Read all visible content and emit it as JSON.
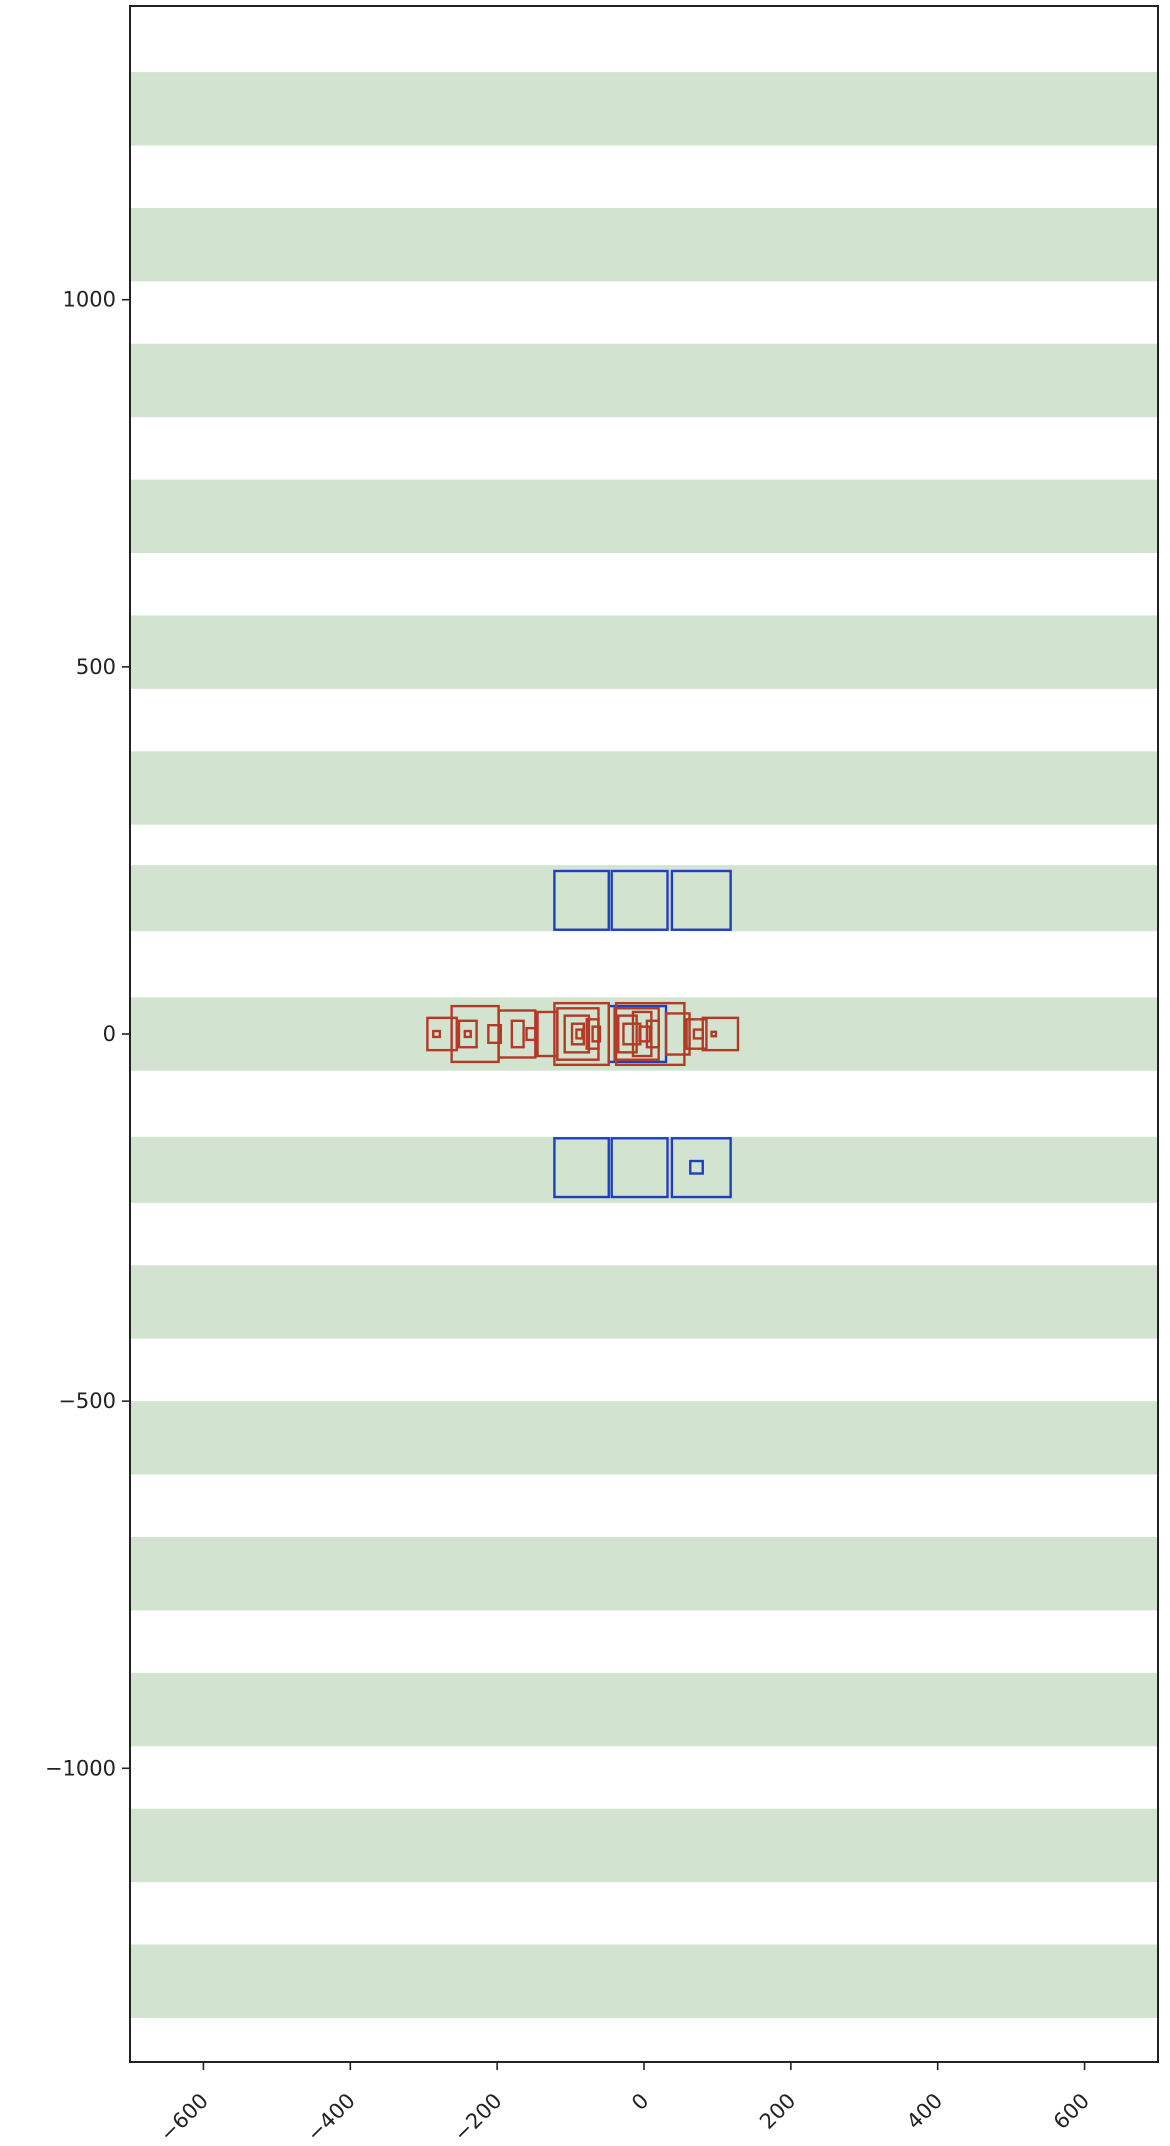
{
  "chart_data": {
    "type": "scatter",
    "title": "",
    "xlabel": "",
    "ylabel": "",
    "xlim": [
      -700,
      700
    ],
    "ylim": [
      -1400,
      1400
    ],
    "grid": false,
    "x_ticks": [
      {
        "value": -600,
        "label": "−600"
      },
      {
        "value": -400,
        "label": "−400"
      },
      {
        "value": -200,
        "label": "−200"
      },
      {
        "value": 0,
        "label": "0"
      },
      {
        "value": 200,
        "label": "200"
      },
      {
        "value": 400,
        "label": "400"
      },
      {
        "value": 600,
        "label": "600"
      }
    ],
    "y_ticks": [
      {
        "value": 1000,
        "label": "1000"
      },
      {
        "value": 500,
        "label": "500"
      },
      {
        "value": 0,
        "label": "0"
      },
      {
        "value": -500,
        "label": "−500"
      },
      {
        "value": -1000,
        "label": "−1000"
      }
    ],
    "background_bands": {
      "color": "#d2e4d0",
      "ranges": [
        [
          1210,
          1310
        ],
        [
          1025,
          1125
        ],
        [
          840,
          940
        ],
        [
          655,
          755
        ],
        [
          470,
          570
        ],
        [
          285,
          385
        ],
        [
          140,
          230
        ],
        [
          -50,
          50
        ],
        [
          -230,
          -140
        ],
        [
          -415,
          -315
        ],
        [
          -600,
          -500
        ],
        [
          -785,
          -685
        ],
        [
          -970,
          -870
        ],
        [
          -1155,
          -1055
        ],
        [
          -1340,
          -1240
        ]
      ]
    },
    "series": [
      {
        "color": "#1f3fbf",
        "rectangles": [
          {
            "x": [
              -122,
              -48
            ],
            "y": [
              142,
              222
            ]
          },
          {
            "x": [
              -44,
              32
            ],
            "y": [
              142,
              222
            ]
          },
          {
            "x": [
              38,
              118
            ],
            "y": [
              142,
              222
            ]
          },
          {
            "x": [
              -122,
              -48
            ],
            "y": [
              -222,
              -142
            ]
          },
          {
            "x": [
              -44,
              32
            ],
            "y": [
              -222,
              -142
            ]
          },
          {
            "x": [
              38,
              118
            ],
            "y": [
              -222,
              -142
            ]
          },
          {
            "x": [
              63,
              80
            ],
            "y": [
              -190,
              -173
            ]
          },
          {
            "x": [
              -48,
              30
            ],
            "y": [
              -38,
              38
            ]
          }
        ]
      },
      {
        "color": "#b23a26",
        "rectangles": [
          {
            "x": [
              -295,
              -255
            ],
            "y": [
              -22,
              22
            ]
          },
          {
            "x": [
              -287,
              -278
            ],
            "y": [
              -4,
              4
            ]
          },
          {
            "x": [
              -262,
              -198
            ],
            "y": [
              -38,
              38
            ]
          },
          {
            "x": [
              -252,
              -228
            ],
            "y": [
              -18,
              18
            ]
          },
          {
            "x": [
              -244,
              -236
            ],
            "y": [
              -4,
              4
            ]
          },
          {
            "x": [
              -212,
              -195
            ],
            "y": [
              -12,
              12
            ]
          },
          {
            "x": [
              -198,
              -148
            ],
            "y": [
              -32,
              32
            ]
          },
          {
            "x": [
              -180,
              -164
            ],
            "y": [
              -18,
              18
            ]
          },
          {
            "x": [
              -160,
              -148
            ],
            "y": [
              -8,
              8
            ]
          },
          {
            "x": [
              -145,
              -118
            ],
            "y": [
              -30,
              30
            ]
          },
          {
            "x": [
              -122,
              -48
            ],
            "y": [
              -42,
              42
            ]
          },
          {
            "x": [
              -118,
              -62
            ],
            "y": [
              -35,
              35
            ]
          },
          {
            "x": [
              -108,
              -75
            ],
            "y": [
              -25,
              25
            ]
          },
          {
            "x": [
              -98,
              -82
            ],
            "y": [
              -14,
              14
            ]
          },
          {
            "x": [
              -92,
              -84
            ],
            "y": [
              -6,
              6
            ]
          },
          {
            "x": [
              -78,
              -62
            ],
            "y": [
              -20,
              20
            ]
          },
          {
            "x": [
              -70,
              -60
            ],
            "y": [
              -10,
              10
            ]
          },
          {
            "x": [
              -40,
              20
            ],
            "y": [
              -35,
              35
            ]
          },
          {
            "x": [
              -35,
              -10
            ],
            "y": [
              -25,
              25
            ]
          },
          {
            "x": [
              -28,
              -5
            ],
            "y": [
              -14,
              14
            ]
          },
          {
            "x": [
              -15,
              10
            ],
            "y": [
              -30,
              30
            ]
          },
          {
            "x": [
              -6,
              8
            ],
            "y": [
              -10,
              10
            ]
          },
          {
            "x": [
              4,
              20
            ],
            "y": [
              -18,
              18
            ]
          },
          {
            "x": [
              -38,
              55
            ],
            "y": [
              -42,
              42
            ]
          },
          {
            "x": [
              30,
              62
            ],
            "y": [
              -28,
              28
            ]
          },
          {
            "x": [
              58,
              85
            ],
            "y": [
              -20,
              20
            ]
          },
          {
            "x": [
              68,
              80
            ],
            "y": [
              -6,
              6
            ]
          },
          {
            "x": [
              80,
              128
            ],
            "y": [
              -22,
              22
            ]
          },
          {
            "x": [
              92,
              98
            ],
            "y": [
              -3,
              3
            ]
          }
        ]
      }
    ]
  }
}
